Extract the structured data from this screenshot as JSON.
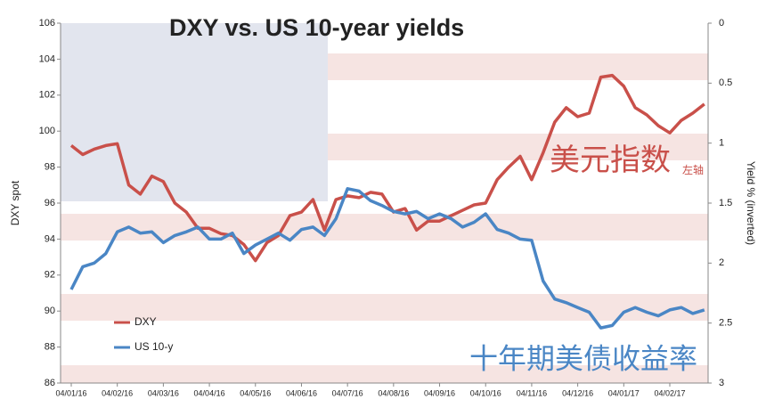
{
  "chart_data": {
    "type": "line",
    "title": "DXY vs. US 10-year yields",
    "y_label": "DXY spot",
    "y2_label": "Yield  % (inverted)",
    "categories": [
      "04/01/16",
      null,
      null,
      null,
      "04/02/16",
      null,
      null,
      null,
      "04/03/16",
      null,
      null,
      null,
      "04/04/16",
      null,
      null,
      null,
      "04/05/16",
      null,
      null,
      null,
      "04/06/16",
      null,
      null,
      null,
      "04/07/16",
      null,
      null,
      null,
      "04/08/16",
      null,
      null,
      null,
      "04/09/16",
      null,
      null,
      null,
      "04/10/16",
      null,
      null,
      null,
      "04/11/16",
      null,
      null,
      null,
      "04/12/16",
      null,
      null,
      null,
      "04/01/17",
      null,
      null,
      null,
      "04/02/17",
      null,
      null,
      null
    ],
    "series": [
      {
        "name": "DXY",
        "color": "#c9504a",
        "values": [
          99.2,
          98.7,
          99.0,
          99.2,
          99.3,
          97.0,
          96.5,
          97.5,
          97.2,
          96.0,
          95.5,
          94.6,
          94.6,
          94.3,
          94.2,
          93.7,
          92.8,
          93.8,
          94.2,
          95.3,
          95.5,
          96.2,
          94.5,
          96.2,
          96.4,
          96.3,
          96.6,
          96.5,
          95.5,
          95.7,
          94.5,
          95.0,
          95.0,
          95.3,
          95.6,
          95.9,
          96.0,
          97.3,
          98.0,
          98.6,
          97.3,
          98.8,
          100.5,
          101.3,
          100.8,
          101.0,
          103.0,
          103.1,
          102.5,
          101.3,
          100.9,
          100.3,
          99.9,
          100.6,
          101.0,
          101.5
        ]
      },
      {
        "name": "US 10-y",
        "color": "#4a86c5",
        "axis": "y2",
        "values": [
          2.22,
          2.03,
          2.0,
          1.92,
          1.74,
          1.7,
          1.75,
          1.74,
          1.83,
          1.77,
          1.74,
          1.7,
          1.8,
          1.8,
          1.75,
          1.92,
          1.85,
          1.8,
          1.75,
          1.81,
          1.72,
          1.7,
          1.77,
          1.63,
          1.38,
          1.4,
          1.48,
          1.52,
          1.57,
          1.59,
          1.57,
          1.63,
          1.59,
          1.63,
          1.7,
          1.66,
          1.59,
          1.72,
          1.75,
          1.8,
          1.81,
          2.15,
          2.3,
          2.33,
          2.37,
          2.41,
          2.54,
          2.52,
          2.41,
          2.37,
          2.41,
          2.44,
          2.39,
          2.37,
          2.42,
          2.39
        ]
      }
    ],
    "ylim": [
      86,
      106
    ],
    "yticks": [
      86,
      88,
      90,
      92,
      94,
      96,
      98,
      100,
      102,
      104,
      106
    ],
    "y2lim": [
      0,
      3
    ],
    "y2ticks": [
      0,
      0.5,
      1,
      1.5,
      2,
      2.5,
      3
    ],
    "y2_inverted": true,
    "legend": "lower left",
    "annotations": [
      "美元指数",
      "左轴",
      "十年期美债收益率"
    ]
  }
}
